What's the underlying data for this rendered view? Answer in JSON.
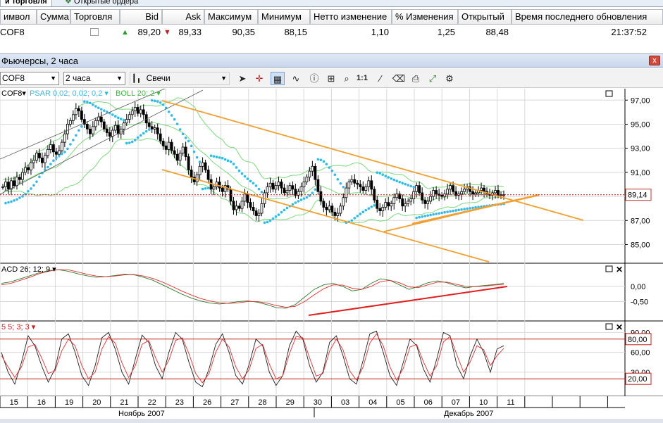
{
  "tabs": [
    {
      "label": "и торговля"
    },
    {
      "label": "Открытые ордера"
    }
  ],
  "quotes": {
    "headers": [
      "имвол",
      "Сумма",
      "Торговля",
      "Bid",
      "Ask",
      "Максимум",
      "Минимум",
      "Нетто изменение",
      "% Изменения",
      "Открытый",
      "Время последнего обновления"
    ],
    "row": {
      "symbol": "COF8",
      "bid": "89,20",
      "ask": "89,33",
      "high": "90,35",
      "low": "88,15",
      "net_change": "1,10",
      "pct_change": "1,25",
      "open": "88,48",
      "last_update": "21:37:52"
    }
  },
  "window": {
    "title": "Фьючерсы, 2 часа",
    "close_label": "x"
  },
  "toolbar": {
    "symbol": "COF8",
    "period": "2 часа",
    "chart_type": "Свечи",
    "chart_type_icon": "candles-icon",
    "ratio_label": "1:1",
    "icons": [
      "cursor-icon",
      "crosshair-icon",
      "grid-icon",
      "indicators-icon",
      "info-icon",
      "zoom-in-icon",
      "zoom-icon",
      "ratio-icon",
      "line-tool-icon",
      "eraser-icon",
      "print-icon",
      "autoscale-icon"
    ]
  },
  "chart_data": [
    {
      "type": "line",
      "panel": "price",
      "symbol_label": "COF8",
      "indicator_labels": [
        "PSAR 0,02; 0,02; 0,2",
        "BOLL 20; 2"
      ],
      "y_ticks": [
        "97,00",
        "95,00",
        "93,00",
        "91,00",
        "89,00",
        "87,00",
        "85,00"
      ],
      "ylim": [
        83.8,
        97.6
      ],
      "last_price": "89,14",
      "last_price_value": 89.14,
      "grid": true,
      "series": [
        {
          "x": [
            0,
            1,
            2,
            3,
            4,
            5,
            6,
            7,
            8,
            9,
            10,
            11,
            12,
            13,
            14,
            15,
            16,
            17,
            18,
            19,
            20,
            21,
            22,
            23,
            24,
            25,
            26,
            27,
            28,
            29,
            30,
            31,
            32,
            33,
            34,
            35,
            36,
            37,
            38,
            39,
            40,
            41,
            42,
            43,
            44,
            45,
            46,
            47,
            48,
            49,
            50,
            51,
            52,
            53,
            54,
            55,
            56,
            57,
            58,
            59,
            60,
            61,
            62,
            63,
            64,
            65,
            66,
            67,
            68,
            69,
            70,
            71,
            72,
            73,
            74,
            75,
            76,
            77,
            78,
            79,
            80,
            81,
            82,
            83,
            84,
            85,
            86,
            87,
            88,
            89,
            90,
            91,
            92,
            93,
            94,
            95,
            96,
            97,
            98,
            99,
            100,
            101,
            102,
            103,
            104,
            105,
            106,
            107,
            108,
            109,
            110,
            111,
            112,
            113,
            114,
            115,
            116,
            117,
            118,
            119,
            120,
            121,
            122,
            123,
            124,
            125,
            126,
            127,
            128,
            129,
            130,
            131,
            132,
            133,
            134,
            135,
            136,
            137,
            138,
            139,
            140,
            141,
            142,
            143,
            144,
            145,
            146,
            147,
            148,
            149,
            150,
            151,
            152,
            153,
            154,
            155,
            156,
            157,
            158,
            159,
            160,
            161,
            162,
            163,
            164,
            165,
            166,
            167,
            168,
            169,
            170,
            171,
            172,
            173,
            174,
            175,
            176,
            177,
            178
          ],
          "y": [
            89.8,
            90.2,
            89.6,
            90.3,
            89.9,
            90.6,
            90.4,
            91.0,
            91.4,
            91.2,
            91.8,
            92.0,
            92.6,
            92.2,
            91.8,
            92.4,
            92.9,
            93.3,
            92.7,
            92.5,
            92.8,
            93.5,
            94.2,
            95.0,
            95.3,
            95.8,
            96.3,
            96.1,
            95.4,
            95.0,
            94.6,
            94.2,
            94.8,
            95.3,
            95.6,
            95.2,
            94.6,
            94.3,
            94.0,
            94.5,
            94.9,
            94.2,
            94.6,
            95.1,
            95.4,
            95.8,
            96.1,
            96.4,
            95.9,
            96.2,
            95.8,
            95.1,
            94.8,
            94.6,
            94.7,
            94.2,
            93.6,
            93.2,
            92.9,
            93.5,
            92.8,
            92.5,
            92.0,
            92.6,
            93.1,
            92.3,
            91.2,
            90.6,
            90.2,
            90.8,
            91.5,
            91.8,
            91.2,
            90.4,
            89.6,
            89.8,
            90.2,
            89.7,
            89.4,
            89.9,
            89.6,
            88.6,
            87.9,
            88.2,
            88.0,
            88.6,
            89.2,
            88.5,
            88.1,
            87.8,
            87.4,
            87.6,
            88.4,
            89.3,
            89.8,
            90.1,
            89.6,
            89.9,
            90.2,
            89.7,
            89.3,
            89.5,
            89.9,
            89.6,
            89.1,
            89.4,
            89.8,
            90.2,
            90.6,
            91.1,
            91.5,
            90.4,
            89.4,
            88.6,
            88.1,
            87.9,
            88.2,
            87.7,
            87.4,
            87.6,
            88.2,
            88.9,
            89.7,
            90.2,
            90.4,
            90.1,
            90.0,
            89.8,
            89.5,
            89.8,
            90.3,
            89.6,
            88.7,
            88.0,
            87.8,
            88.1,
            88.5,
            88.2,
            88.4,
            88.9,
            89.2,
            88.8,
            88.2,
            88.4,
            88.6,
            88.8,
            89.4,
            89.9,
            89.3,
            88.7,
            88.4,
            88.6,
            89.0,
            89.5,
            89.2,
            89.1,
            89.0,
            89.2,
            89.6,
            89.9,
            89.4,
            89.1,
            89.2,
            89.4,
            89.6,
            89.8,
            89.4,
            89.2,
            89.3,
            89.5,
            89.7,
            89.4,
            89.2,
            89.1,
            89.3,
            89.5,
            89.1,
            89.14,
            89.14
          ]
        }
      ]
    },
    {
      "type": "line",
      "panel": "macd",
      "label": "ACD 26; 12; 9",
      "y_ticks": [
        "0,00",
        "-0,50"
      ],
      "ylim": [
        -1.0,
        0.6
      ],
      "grid": true,
      "series": [
        {
          "color": "#2f7a2f",
          "values": [
            0.1,
            0.15,
            0.25,
            0.35,
            0.45,
            0.52,
            0.55,
            0.5,
            0.42,
            0.35,
            0.3,
            0.32,
            0.36,
            0.4,
            0.38,
            0.3,
            0.2,
            0.05,
            -0.1,
            -0.25,
            -0.38,
            -0.48,
            -0.55,
            -0.58,
            -0.55,
            -0.5,
            -0.48,
            -0.52,
            -0.6,
            -0.7,
            -0.72,
            -0.6,
            -0.35,
            -0.1,
            0.05,
            0.1,
            0.0,
            -0.15,
            -0.1,
            0.1,
            0.25,
            0.2,
            0.05,
            -0.1,
            0.0,
            0.12,
            0.18,
            0.12,
            0.02,
            -0.05,
            0.0,
            0.03,
            0.06,
            0.1
          ]
        },
        {
          "color": "#e03030",
          "values": [
            0.05,
            0.1,
            0.2,
            0.3,
            0.42,
            0.5,
            0.55,
            0.55,
            0.48,
            0.4,
            0.34,
            0.32,
            0.34,
            0.38,
            0.39,
            0.34,
            0.26,
            0.14,
            0.0,
            -0.15,
            -0.28,
            -0.4,
            -0.48,
            -0.54,
            -0.56,
            -0.54,
            -0.5,
            -0.5,
            -0.55,
            -0.63,
            -0.69,
            -0.66,
            -0.5,
            -0.28,
            -0.08,
            0.05,
            0.04,
            -0.06,
            -0.1,
            0.0,
            0.16,
            0.2,
            0.12,
            -0.02,
            -0.04,
            0.05,
            0.14,
            0.14,
            0.07,
            0.0,
            -0.01,
            0.01,
            0.04,
            0.07
          ]
        }
      ]
    },
    {
      "type": "line",
      "panel": "stochastic",
      "label": "5 5; 3; 3",
      "y_ticks": [
        "90,00",
        "60,00",
        "30,00"
      ],
      "ylim": [
        0,
        100
      ],
      "levels": [
        "80,00",
        "20,00"
      ],
      "grid": true,
      "series": [
        {
          "color": "#202020",
          "values": [
            60,
            30,
            12,
            45,
            85,
            70,
            40,
            15,
            35,
            80,
            88,
            60,
            25,
            10,
            40,
            82,
            90,
            65,
            30,
            12,
            50,
            86,
            75,
            40,
            20,
            60,
            90,
            80,
            45,
            15,
            8,
            35,
            72,
            88,
            60,
            25,
            12,
            42,
            80,
            70,
            30,
            10,
            25,
            70,
            92,
            80,
            40,
            15,
            30,
            75,
            85,
            55,
            20,
            12,
            48,
            88,
            92,
            60,
            25,
            10,
            45,
            80,
            70,
            35,
            15,
            50,
            90,
            85,
            40,
            20,
            55,
            80,
            60,
            30,
            65,
            70
          ]
        },
        {
          "color": "#e03030",
          "values": [
            55,
            38,
            22,
            38,
            68,
            72,
            52,
            28,
            32,
            62,
            80,
            70,
            40,
            20,
            30,
            65,
            84,
            74,
            44,
            22,
            40,
            72,
            78,
            52,
            30,
            48,
            78,
            82,
            58,
            28,
            14,
            28,
            60,
            80,
            68,
            38,
            20,
            34,
            66,
            72,
            42,
            20,
            24,
            58,
            84,
            82,
            52,
            24,
            28,
            62,
            80,
            64,
            32,
            18,
            38,
            74,
            88,
            70,
            38,
            18,
            36,
            68,
            72,
            46,
            24,
            40,
            76,
            84,
            56,
            30,
            46,
            70,
            64,
            40,
            55,
            66
          ]
        }
      ]
    }
  ],
  "x_axis": {
    "day_labels": [
      "15",
      "16",
      "19",
      "20",
      "21",
      "22",
      "23",
      "26",
      "27",
      "28",
      "29",
      "30",
      "03",
      "04",
      "05",
      "06",
      "07",
      "10",
      "11"
    ],
    "months": [
      "Ноябрь 2007",
      "Декабрь 2007"
    ]
  },
  "colors": {
    "channel": "#f0a030",
    "bollinger": "#7cd87c",
    "psar": "#34b8e8",
    "price_line": "#c03030",
    "macd_trend": "#e02020"
  }
}
